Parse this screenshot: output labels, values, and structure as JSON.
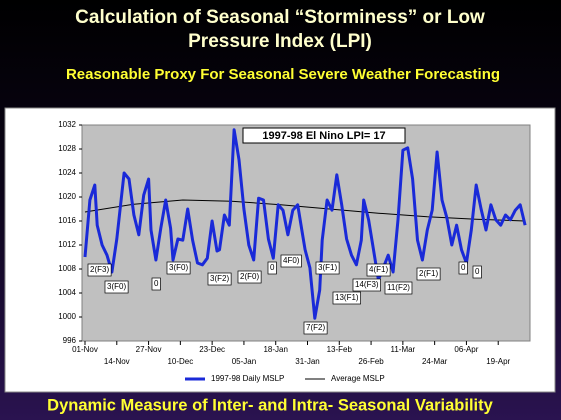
{
  "chart_data": {
    "type": "line",
    "title": [
      "Calculation of Seasonal “Storminess” or Low",
      "Pressure Index (LPI)"
    ],
    "subtitle": "Reasonable Proxy For Seasonal Severe Weather Forecasting",
    "footer": "Dynamic Measure of Inter- and Intra- Seasonal Variability",
    "inset_label": "1997-98 El Nino LPI= 17",
    "annotations": [
      "2(F3)",
      "3(F0)",
      "0",
      "3(F0)",
      "3(F2)",
      "2(F0)",
      "0",
      "4F0)",
      "3(F1)",
      "7(F2)",
      "13(F1)",
      "14(F3)",
      "4(F1)",
      "11(F2)",
      "2(F1)",
      "0",
      "0"
    ],
    "xlim": [
      0,
      182
    ],
    "xticks": [
      {
        "value": 0,
        "label": "01-Nov"
      },
      {
        "value": 13,
        "label": "14-Nov"
      },
      {
        "value": 26,
        "label": "27-Nov"
      },
      {
        "value": 39,
        "label": "10-Dec"
      },
      {
        "value": 52,
        "label": "23-Dec"
      },
      {
        "value": 65,
        "label": "05-Jan"
      },
      {
        "value": 78,
        "label": "18-Jan"
      },
      {
        "value": 91,
        "label": "31-Jan"
      },
      {
        "value": 104,
        "label": "13-Feb"
      },
      {
        "value": 117,
        "label": "26-Feb"
      },
      {
        "value": 130,
        "label": "11-Mar"
      },
      {
        "value": 143,
        "label": "24-Mar"
      },
      {
        "value": 156,
        "label": "06-Apr"
      },
      {
        "value": 169,
        "label": "19-Apr"
      }
    ],
    "ylim": [
      996,
      1032
    ],
    "yticks": [
      996,
      1000,
      1004,
      1008,
      1012,
      1016,
      1020,
      1024,
      1028,
      1032
    ],
    "grid": false,
    "series": [
      {
        "name": "1997-98 Daily MSLP",
        "color": "#1a2ad8",
        "x": [
          0,
          2,
          4,
          5,
          7,
          9,
          11,
          13,
          16,
          18,
          20,
          22,
          24,
          26,
          27,
          29,
          31,
          33,
          35,
          36,
          38,
          40,
          42,
          44,
          46,
          48,
          50,
          52,
          54,
          55,
          57,
          59,
          61,
          63,
          65,
          67,
          69,
          71,
          73,
          75,
          77,
          79,
          81,
          83,
          85,
          87,
          89,
          90,
          92,
          94,
          96,
          97,
          99,
          101,
          103,
          105,
          107,
          109,
          111,
          113,
          114,
          116,
          118,
          120,
          122,
          124,
          126,
          128,
          130,
          132,
          134,
          136,
          138,
          140,
          142,
          144,
          146,
          148,
          150,
          152,
          154,
          156,
          158,
          160,
          162,
          164,
          166,
          168,
          170,
          172,
          174,
          176,
          178,
          180
        ],
        "values": [
          1010,
          1019.5,
          1022,
          1015.3,
          1012,
          1010.3,
          1007.5,
          1013,
          1024,
          1023,
          1017,
          1013.7,
          1020.3,
          1023,
          1014.5,
          1009.5,
          1014.8,
          1019.5,
          1014.8,
          1009.5,
          1013,
          1012.8,
          1018,
          1012.8,
          1009,
          1008.7,
          1009.8,
          1016,
          1011,
          1011.2,
          1017,
          1015.3,
          1031.2,
          1026.2,
          1018,
          1012,
          1009.5,
          1019.8,
          1019.5,
          1013,
          1009.8,
          1018.7,
          1017.8,
          1013.7,
          1017.8,
          1018.7,
          1013.7,
          1011.2,
          1008.2,
          999.8,
          1004.5,
          1012.8,
          1019.5,
          1017.8,
          1023.7,
          1018.7,
          1013,
          1010.3,
          1008.7,
          1012.8,
          1019.5,
          1016.2,
          1011.2,
          1006.2,
          1008.2,
          1010.3,
          1007.5,
          1016.2,
          1027.8,
          1028.2,
          1023,
          1012.8,
          1009.5,
          1014.5,
          1017.8,
          1027.5,
          1019.5,
          1016.5,
          1012,
          1015.3,
          1011.2,
          1009,
          1014.5,
          1022,
          1018,
          1014.5,
          1018.7,
          1016.2,
          1015.3,
          1017,
          1016.2,
          1017.8,
          1018.7,
          1015.3
        ]
      },
      {
        "name": "Average MSLP",
        "color": "#000000",
        "x": [
          0,
          20,
          40,
          60,
          80,
          100,
          120,
          140,
          160,
          180
        ],
        "values": [
          1017.5,
          1018.8,
          1019.5,
          1019.3,
          1018.7,
          1018,
          1017.3,
          1016.7,
          1016.3,
          1016
        ]
      }
    ],
    "legend": "bottom"
  }
}
